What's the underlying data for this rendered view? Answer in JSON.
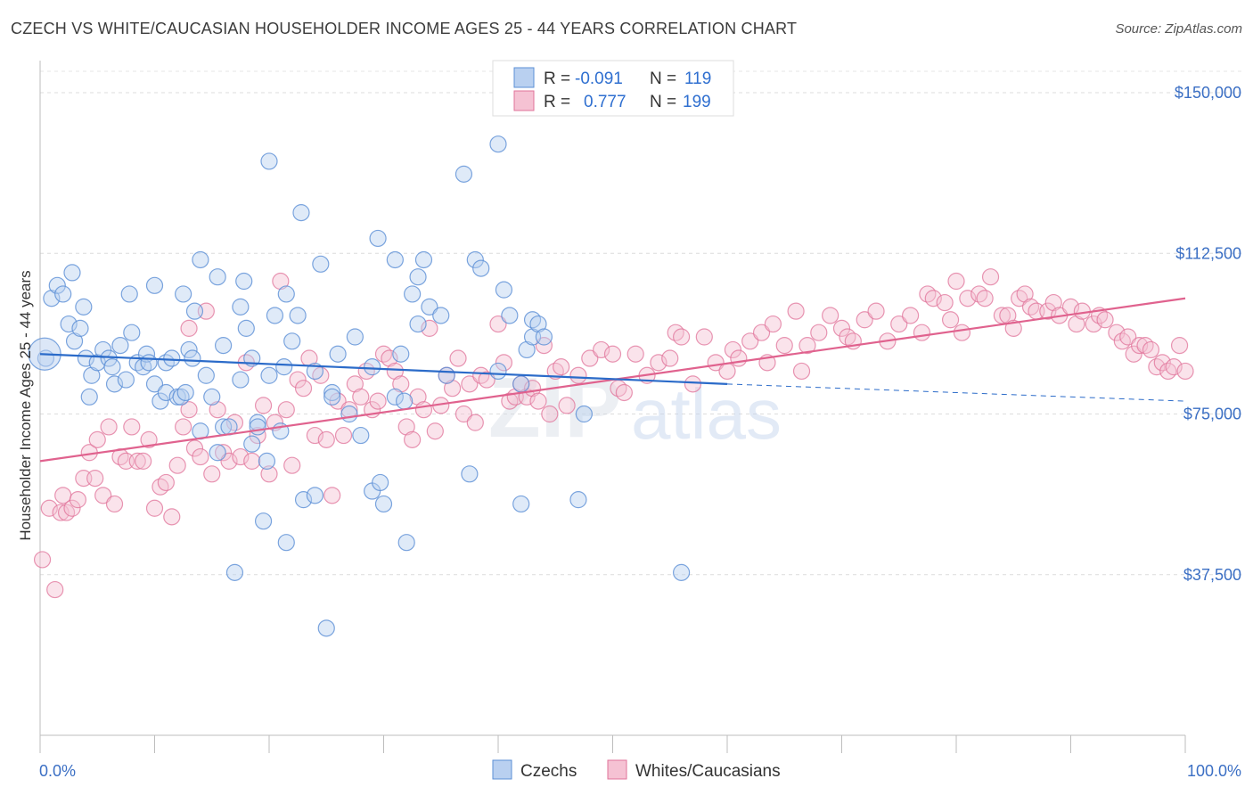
{
  "title": "CZECH VS WHITE/CAUCASIAN HOUSEHOLDER INCOME AGES 25 - 44 YEARS CORRELATION CHART",
  "source": "Source: ZipAtlas.com",
  "watermark": {
    "zip": "ZIP",
    "atlas": "atlas"
  },
  "legend_top": {
    "czech": {
      "r_label": "R =",
      "r_value": "-0.091",
      "n_label": "N =",
      "n_value": "119"
    },
    "white": {
      "r_label": "R =",
      "r_value": "0.777",
      "n_label": "N =",
      "n_value": "199"
    }
  },
  "legend_bottom": {
    "czech": "Czechs",
    "white": "Whites/Caucasians"
  },
  "colors": {
    "czech": "#5b8fd6",
    "czech_fill": "#b9d0f0",
    "white": "#e07399",
    "white_fill": "#f5c2d3",
    "czech_line": "#2b6bc9",
    "white_line": "#e0628e"
  },
  "chart_data": {
    "type": "scatter",
    "title": "CZECH VS WHITE/CAUCASIAN HOUSEHOLDER INCOME AGES 25 - 44 YEARS CORRELATION CHART",
    "xlabel": "",
    "ylabel": "Householder Income Ages 25 - 44 years",
    "xlim": [
      0,
      100
    ],
    "ylim": [
      0,
      155000
    ],
    "x_tick_labels": [
      "0.0%",
      "100.0%"
    ],
    "y_ticks": [
      37500,
      75000,
      112500,
      150000
    ],
    "y_tick_labels": [
      "$37,500",
      "$75,000",
      "$112,500",
      "$150,000"
    ],
    "grid": true,
    "series": [
      {
        "name": "Czechs",
        "trend": {
          "x": [
            0,
            60
          ],
          "y": [
            89000,
            82000
          ],
          "dashed_to": [
            100,
            78000
          ]
        },
        "points": [
          [
            0.5,
            88000
          ],
          [
            1,
            102000
          ],
          [
            1.5,
            105000
          ],
          [
            2,
            103000
          ],
          [
            2.5,
            96000
          ],
          [
            2.8,
            108000
          ],
          [
            3,
            92000
          ],
          [
            3.5,
            95000
          ],
          [
            3.8,
            100000
          ],
          [
            4,
            88000
          ],
          [
            4.3,
            79000
          ],
          [
            4.5,
            84000
          ],
          [
            5,
            87000
          ],
          [
            5.5,
            90000
          ],
          [
            6,
            88000
          ],
          [
            6.3,
            86000
          ],
          [
            6.5,
            82000
          ],
          [
            7,
            91000
          ],
          [
            7.5,
            83000
          ],
          [
            7.8,
            103000
          ],
          [
            8,
            94000
          ],
          [
            8.5,
            87000
          ],
          [
            9,
            86000
          ],
          [
            9.3,
            89000
          ],
          [
            9.5,
            87000
          ],
          [
            10,
            82000
          ],
          [
            10,
            105000
          ],
          [
            10.5,
            78000
          ],
          [
            11,
            80000
          ],
          [
            11,
            87000
          ],
          [
            11.5,
            88000
          ],
          [
            12,
            79000
          ],
          [
            12.3,
            79000
          ],
          [
            12.5,
            103000
          ],
          [
            12.7,
            80000
          ],
          [
            13,
            90000
          ],
          [
            13.3,
            88000
          ],
          [
            13.5,
            99000
          ],
          [
            14,
            71000
          ],
          [
            14,
            111000
          ],
          [
            14.5,
            84000
          ],
          [
            15,
            79000
          ],
          [
            15.5,
            66000
          ],
          [
            15.5,
            107000
          ],
          [
            16,
            72000
          ],
          [
            16,
            91000
          ],
          [
            16.5,
            72000
          ],
          [
            17,
            38000
          ],
          [
            17.5,
            100000
          ],
          [
            17.5,
            83000
          ],
          [
            17.8,
            106000
          ],
          [
            18,
            95000
          ],
          [
            18.5,
            88000
          ],
          [
            18.5,
            68000
          ],
          [
            19,
            73000
          ],
          [
            19,
            72000
          ],
          [
            19.5,
            50000
          ],
          [
            19.8,
            64000
          ],
          [
            20,
            84000
          ],
          [
            20,
            134000
          ],
          [
            20.5,
            98000
          ],
          [
            21,
            71000
          ],
          [
            21.3,
            86000
          ],
          [
            21.5,
            103000
          ],
          [
            21.5,
            45000
          ],
          [
            22,
            92000
          ],
          [
            22.5,
            98000
          ],
          [
            22.8,
            122000
          ],
          [
            23,
            55000
          ],
          [
            24,
            85000
          ],
          [
            24,
            56000
          ],
          [
            24.5,
            110000
          ],
          [
            25,
            25000
          ],
          [
            25.5,
            80000
          ],
          [
            25.5,
            79000
          ],
          [
            26,
            89000
          ],
          [
            27,
            75000
          ],
          [
            27.5,
            93000
          ],
          [
            28,
            70000
          ],
          [
            29,
            57000
          ],
          [
            29,
            86000
          ],
          [
            29.5,
            116000
          ],
          [
            29.7,
            59000
          ],
          [
            30,
            54000
          ],
          [
            31,
            79000
          ],
          [
            31,
            111000
          ],
          [
            31.5,
            89000
          ],
          [
            31.8,
            78000
          ],
          [
            32,
            45000
          ],
          [
            32.5,
            103000
          ],
          [
            33,
            96000
          ],
          [
            33,
            107000
          ],
          [
            33.5,
            111000
          ],
          [
            34,
            100000
          ],
          [
            35,
            98000
          ],
          [
            35.5,
            84000
          ],
          [
            37,
            131000
          ],
          [
            37.5,
            61000
          ],
          [
            38,
            111000
          ],
          [
            38.5,
            109000
          ],
          [
            40,
            85000
          ],
          [
            40,
            138000
          ],
          [
            40.5,
            104000
          ],
          [
            41,
            98000
          ],
          [
            42,
            82000
          ],
          [
            42,
            54000
          ],
          [
            42.5,
            90000
          ],
          [
            43,
            93000
          ],
          [
            43,
            97000
          ],
          [
            43.5,
            96000
          ],
          [
            44,
            93000
          ],
          [
            47,
            55000
          ],
          [
            47.5,
            75000
          ],
          [
            56,
            38000
          ]
        ]
      },
      {
        "name": "Whites/Caucasians",
        "trend": {
          "x": [
            0,
            100
          ],
          "y": [
            64000,
            102000
          ]
        },
        "points": [
          [
            0.2,
            41000
          ],
          [
            0.8,
            53000
          ],
          [
            1.3,
            34000
          ],
          [
            1.8,
            52000
          ],
          [
            2,
            56000
          ],
          [
            2.3,
            52000
          ],
          [
            2.8,
            53000
          ],
          [
            3.3,
            55000
          ],
          [
            3.8,
            60000
          ],
          [
            4.3,
            66000
          ],
          [
            4.8,
            60000
          ],
          [
            5,
            69000
          ],
          [
            5.5,
            56000
          ],
          [
            6,
            72000
          ],
          [
            6.5,
            54000
          ],
          [
            7,
            65000
          ],
          [
            7.5,
            64000
          ],
          [
            8,
            72000
          ],
          [
            8.5,
            64000
          ],
          [
            9,
            64000
          ],
          [
            9.5,
            69000
          ],
          [
            10,
            53000
          ],
          [
            10.5,
            58000
          ],
          [
            11,
            59000
          ],
          [
            11.5,
            51000
          ],
          [
            12,
            63000
          ],
          [
            12.5,
            72000
          ],
          [
            13,
            76000
          ],
          [
            13,
            95000
          ],
          [
            13.5,
            67000
          ],
          [
            14,
            65000
          ],
          [
            14.5,
            99000
          ],
          [
            15,
            61000
          ],
          [
            15.5,
            76000
          ],
          [
            16,
            66000
          ],
          [
            16.5,
            64000
          ],
          [
            17,
            73000
          ],
          [
            17.5,
            65000
          ],
          [
            18,
            87000
          ],
          [
            18.5,
            64000
          ],
          [
            19,
            70000
          ],
          [
            19.5,
            77000
          ],
          [
            20,
            61000
          ],
          [
            20.5,
            73000
          ],
          [
            21,
            106000
          ],
          [
            21.5,
            76000
          ],
          [
            22,
            63000
          ],
          [
            22.5,
            83000
          ],
          [
            23,
            81000
          ],
          [
            23.5,
            88000
          ],
          [
            24,
            70000
          ],
          [
            24.5,
            84000
          ],
          [
            25,
            69000
          ],
          [
            25.5,
            56000
          ],
          [
            26,
            78000
          ],
          [
            26.5,
            70000
          ],
          [
            27,
            76000
          ],
          [
            27.5,
            82000
          ],
          [
            28,
            79000
          ],
          [
            28.5,
            85000
          ],
          [
            29,
            76000
          ],
          [
            29.5,
            78000
          ],
          [
            30,
            89000
          ],
          [
            30.5,
            88000
          ],
          [
            31,
            85000
          ],
          [
            31.5,
            82000
          ],
          [
            32,
            72000
          ],
          [
            32.5,
            69000
          ],
          [
            33,
            79000
          ],
          [
            33.5,
            76000
          ],
          [
            34,
            95000
          ],
          [
            34.5,
            71000
          ],
          [
            35,
            77000
          ],
          [
            35.5,
            84000
          ],
          [
            36,
            81000
          ],
          [
            36.5,
            88000
          ],
          [
            37,
            75000
          ],
          [
            37.5,
            82000
          ],
          [
            38,
            73000
          ],
          [
            38.5,
            84000
          ],
          [
            39,
            83000
          ],
          [
            40,
            96000
          ],
          [
            40.5,
            87000
          ],
          [
            41,
            78000
          ],
          [
            41.5,
            79000
          ],
          [
            42,
            82000
          ],
          [
            42.5,
            79000
          ],
          [
            43,
            81000
          ],
          [
            43.5,
            78000
          ],
          [
            44,
            91000
          ],
          [
            44.5,
            75000
          ],
          [
            45,
            85000
          ],
          [
            45.5,
            86000
          ],
          [
            46,
            77000
          ],
          [
            47,
            84000
          ],
          [
            48,
            88000
          ],
          [
            49,
            90000
          ],
          [
            50,
            89000
          ],
          [
            50.5,
            81000
          ],
          [
            51,
            80000
          ],
          [
            52,
            89000
          ],
          [
            53,
            84000
          ],
          [
            54,
            87000
          ],
          [
            55,
            88000
          ],
          [
            55.5,
            94000
          ],
          [
            56,
            93000
          ],
          [
            57,
            82000
          ],
          [
            58,
            93000
          ],
          [
            59,
            87000
          ],
          [
            60,
            85000
          ],
          [
            60.5,
            90000
          ],
          [
            61,
            88000
          ],
          [
            62,
            92000
          ],
          [
            63,
            94000
          ],
          [
            63.5,
            87000
          ],
          [
            64,
            96000
          ],
          [
            65,
            91000
          ],
          [
            66,
            99000
          ],
          [
            66.5,
            85000
          ],
          [
            67,
            91000
          ],
          [
            68,
            94000
          ],
          [
            69,
            98000
          ],
          [
            70,
            95000
          ],
          [
            70.5,
            93000
          ],
          [
            71,
            92000
          ],
          [
            72,
            97000
          ],
          [
            73,
            99000
          ],
          [
            74,
            92000
          ],
          [
            75,
            96000
          ],
          [
            76,
            98000
          ],
          [
            77,
            94000
          ],
          [
            77.5,
            103000
          ],
          [
            78,
            102000
          ],
          [
            79,
            101000
          ],
          [
            79.5,
            97000
          ],
          [
            80,
            106000
          ],
          [
            80.5,
            94000
          ],
          [
            81,
            102000
          ],
          [
            82,
            103000
          ],
          [
            82.5,
            102000
          ],
          [
            83,
            107000
          ],
          [
            84,
            98000
          ],
          [
            84.5,
            98000
          ],
          [
            85,
            95000
          ],
          [
            85.5,
            102000
          ],
          [
            86,
            103000
          ],
          [
            86.5,
            100000
          ],
          [
            87,
            99000
          ],
          [
            88,
            99000
          ],
          [
            88.5,
            101000
          ],
          [
            89,
            98000
          ],
          [
            90,
            100000
          ],
          [
            90.5,
            96000
          ],
          [
            91,
            99000
          ],
          [
            92,
            96000
          ],
          [
            92.5,
            98000
          ],
          [
            93,
            97000
          ],
          [
            94,
            94000
          ],
          [
            94.5,
            92000
          ],
          [
            95,
            93000
          ],
          [
            95.5,
            89000
          ],
          [
            96,
            91000
          ],
          [
            96.5,
            91000
          ],
          [
            97,
            90000
          ],
          [
            97.5,
            86000
          ],
          [
            98,
            87000
          ],
          [
            98.5,
            85000
          ],
          [
            99,
            86000
          ],
          [
            99.5,
            91000
          ],
          [
            100,
            85000
          ]
        ]
      }
    ]
  }
}
